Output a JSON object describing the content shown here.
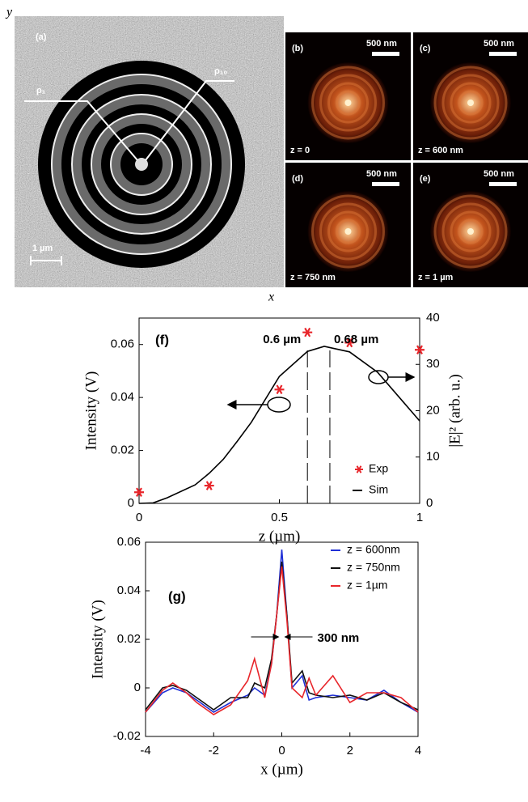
{
  "image_panels": {
    "y_axis": "y",
    "x_axis": "x",
    "a": {
      "label": "(a)",
      "rho_inner": "ρ₁",
      "rho_outer": "ρ₁₀",
      "scale": "1 µm"
    },
    "thermal": [
      {
        "label": "(b)",
        "scale": "500 nm",
        "z": "z = 0"
      },
      {
        "label": "(c)",
        "scale": "500 nm",
        "z": "z = 600 nm"
      },
      {
        "label": "(d)",
        "scale": "500 nm",
        "z": "z = 750 nm"
      },
      {
        "label": "(e)",
        "scale": "500 nm",
        "z": "z = 1 µm"
      }
    ]
  },
  "chart_data": [
    {
      "type": "line",
      "panel_label": "(f)",
      "xlabel": "z (µm)",
      "ylabel": "Intensity (V)",
      "y2label": "|E|² (arb. u.)",
      "xlim": [
        0,
        1
      ],
      "xticks": [
        0,
        0.5,
        1
      ],
      "ylim": [
        0,
        0.07
      ],
      "yticks": [
        0,
        0.02,
        0.04,
        0.06
      ],
      "y2lim": [
        0,
        40
      ],
      "y2ticks": [
        0,
        10,
        20,
        30,
        40
      ],
      "legend": "lower right",
      "annotations": [
        {
          "text": "0.6 µm",
          "x": 0.6
        },
        {
          "text": "0.68 µm",
          "x": 0.68
        }
      ],
      "series": [
        {
          "name": "Exp",
          "color": "#e8262b",
          "marker": "star",
          "x": [
            0,
            0.25,
            0.5,
            0.6,
            0.75,
            1
          ],
          "values": [
            0.0042,
            0.0067,
            0.043,
            0.0646,
            0.0607,
            0.058
          ]
        },
        {
          "name": "Sim",
          "color": "#000000",
          "axis": "y2",
          "x": [
            0,
            0.05,
            0.1,
            0.2,
            0.25,
            0.3,
            0.35,
            0.4,
            0.5,
            0.6,
            0.66,
            0.75,
            0.85,
            0.95,
            1
          ],
          "values": [
            0,
            0.1,
            1.2,
            4,
            6.5,
            9.5,
            13.4,
            17.5,
            27.4,
            32.8,
            33.9,
            32.7,
            28.3,
            21.3,
            17.8
          ]
        }
      ]
    },
    {
      "type": "line",
      "panel_label": "(g)",
      "xlabel": "x (µm)",
      "ylabel": "Intensity (V)",
      "xlim": [
        -4,
        4
      ],
      "xticks": [
        -4,
        -2,
        0,
        2,
        4
      ],
      "ylim": [
        -0.02,
        0.06
      ],
      "yticks": [
        -0.02,
        0,
        0.02,
        0.04,
        0.06
      ],
      "legend": "upper right",
      "annotations": [
        {
          "text": "300 nm"
        }
      ],
      "x": [
        -4,
        -3.5,
        -3.2,
        -2.8,
        -2.5,
        -2,
        -1.5,
        -1,
        -0.8,
        -0.5,
        -0.3,
        -0.15,
        0,
        0.15,
        0.3,
        0.6,
        0.8,
        1,
        1.5,
        2,
        2.5,
        3,
        3.5,
        4
      ],
      "series": [
        {
          "name": "z = 600nm",
          "color": "#1f2fd6",
          "values": [
            -0.01,
            -0.002,
            0,
            -0.002,
            -0.005,
            -0.01,
            -0.006,
            -0.003,
            0,
            -0.003,
            0.01,
            0.03,
            0.057,
            0.03,
            0,
            0.005,
            -0.005,
            -0.004,
            -0.003,
            -0.004,
            -0.005,
            -0.001,
            -0.006,
            -0.01
          ]
        },
        {
          "name": "z = 750nm",
          "color": "#111111",
          "values": [
            -0.009,
            0,
            0.001,
            -0.001,
            -0.004,
            -0.009,
            -0.004,
            -0.004,
            0.002,
            0,
            0.012,
            0.03,
            0.052,
            0.03,
            0.002,
            0.007,
            -0.002,
            -0.003,
            -0.004,
            -0.003,
            -0.005,
            -0.002,
            -0.006,
            -0.009
          ]
        },
        {
          "name": "z = 1µm",
          "color": "#e8262b",
          "values": [
            -0.01,
            -0.001,
            0.002,
            -0.002,
            -0.006,
            -0.011,
            -0.007,
            0.003,
            0.012,
            -0.004,
            0.01,
            0.03,
            0.05,
            0.028,
            0,
            -0.004,
            0.004,
            -0.003,
            0.005,
            -0.006,
            -0.002,
            -0.002,
            -0.004,
            -0.01
          ]
        }
      ]
    }
  ]
}
